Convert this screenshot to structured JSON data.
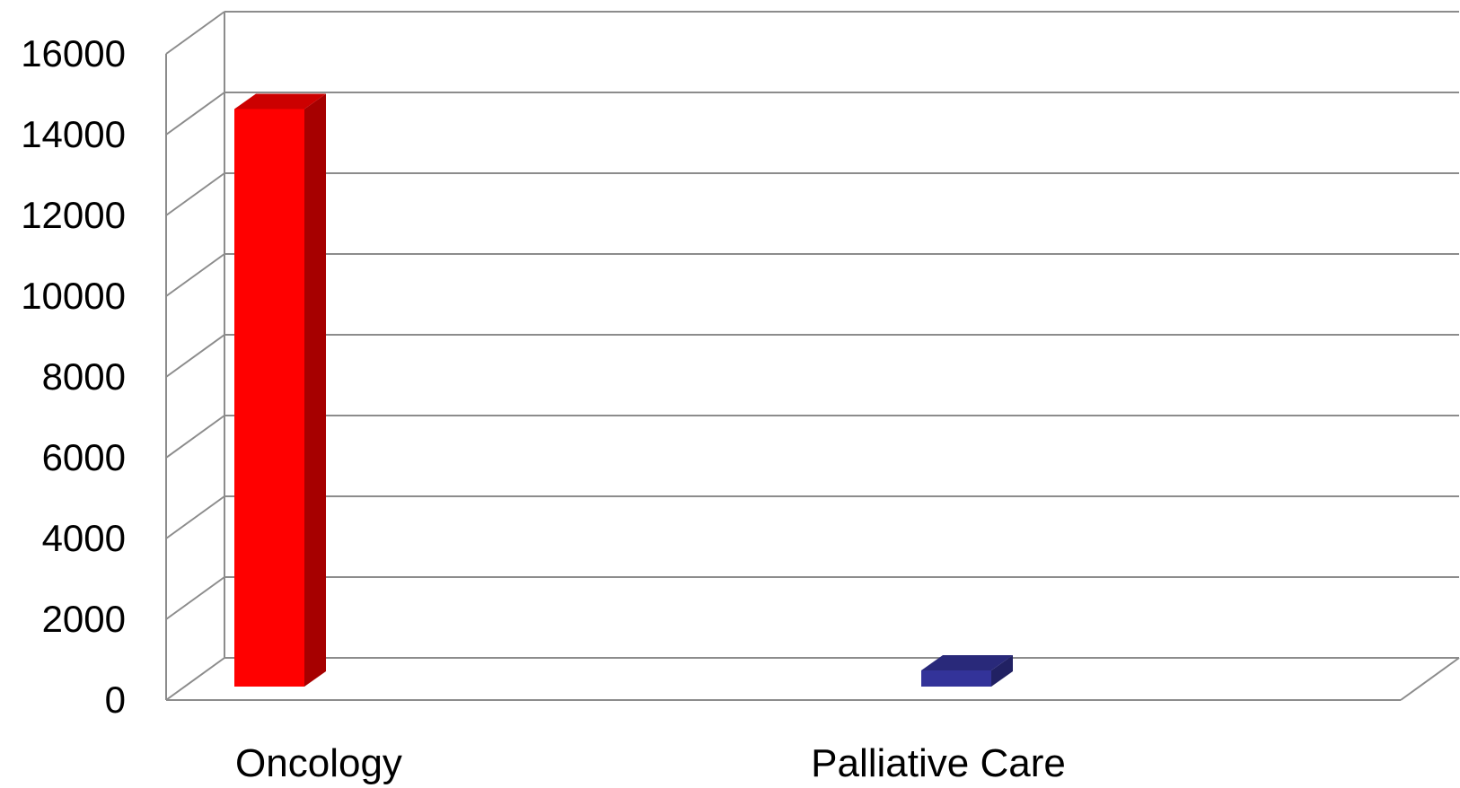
{
  "chart_data": {
    "type": "bar",
    "style": "3d-column",
    "title": "",
    "xlabel": "",
    "ylabel": "",
    "categories": [
      "Oncology",
      "Palliative Care"
    ],
    "values": [
      14300,
      400
    ],
    "colors": [
      "#ff0000",
      "#333399"
    ],
    "ylim": [
      0,
      16000
    ],
    "yticks": [
      "0",
      "2000",
      "4000",
      "6000",
      "8000",
      "10000",
      "12000",
      "14000",
      "16000"
    ],
    "grid": true,
    "legend": "none"
  }
}
